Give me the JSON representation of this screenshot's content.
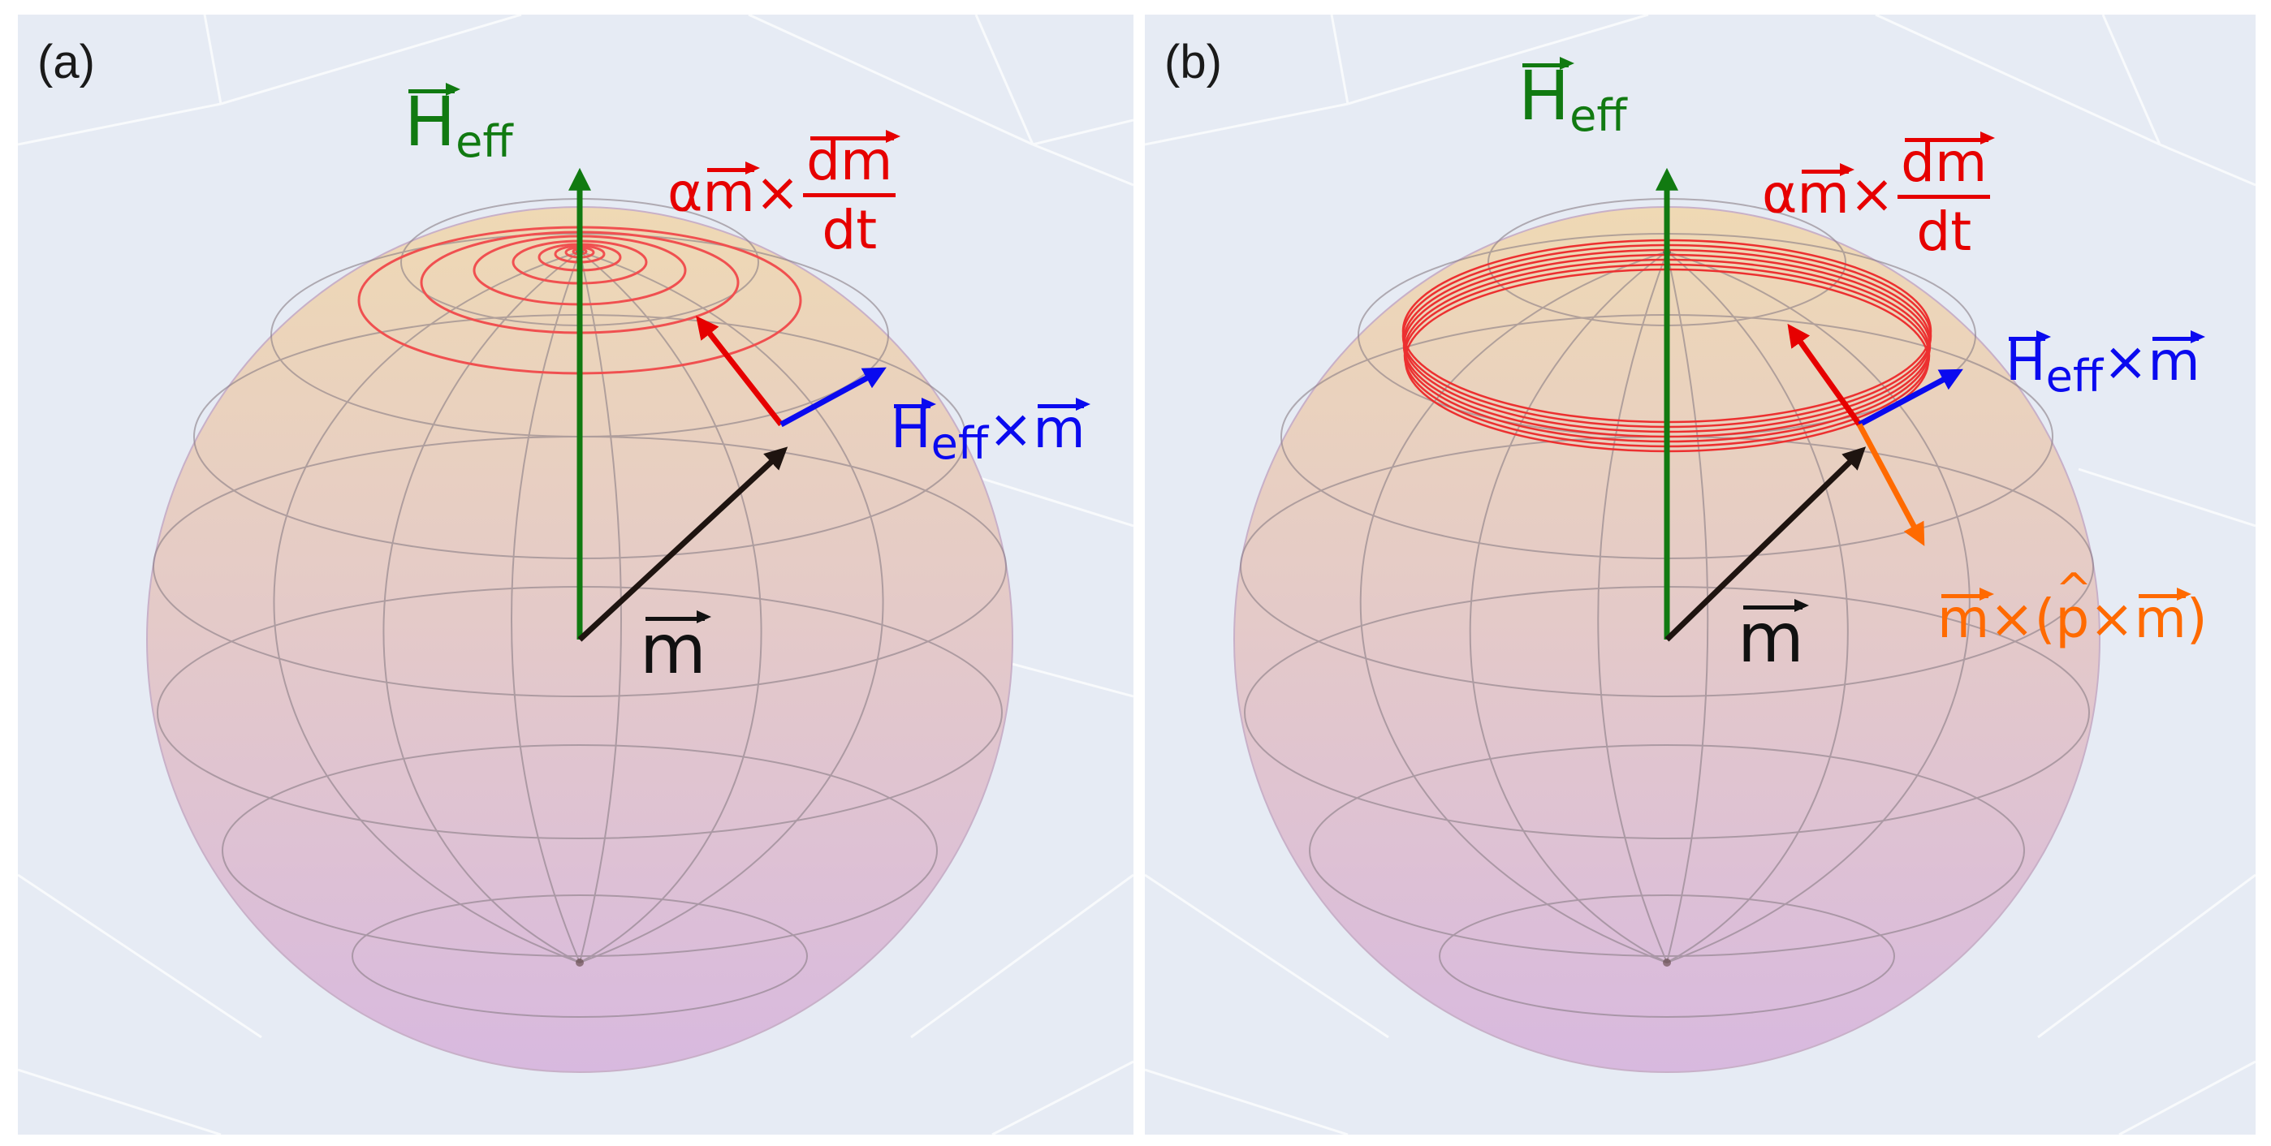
{
  "panels": [
    {
      "id": "a",
      "label": "(a)",
      "field_label": {
        "symbol": "H",
        "subscript": "eff"
      },
      "damping_label": {
        "prefix": "α",
        "vector": "m",
        "operator": "×",
        "numerator": "dm",
        "denominator": "dt"
      },
      "precession_label": {
        "symbol": "H",
        "subscript": "eff",
        "operator": "×",
        "vector": "m"
      },
      "magnetization_label": "m",
      "trajectory": "spiral converging toward the field axis"
    },
    {
      "id": "b",
      "label": "(b)",
      "field_label": {
        "symbol": "H",
        "subscript": "eff"
      },
      "damping_label": {
        "prefix": "α",
        "vector": "m",
        "operator": "×",
        "numerator": "dm",
        "denominator": "dt"
      },
      "precession_label": {
        "symbol": "H",
        "subscript": "eff",
        "operator": "×",
        "vector": "m"
      },
      "magnetization_label": "m",
      "torque_label": {
        "vector1": "m",
        "operator1": "×(",
        "hat": "p",
        "operator2": "×",
        "vector2": "m",
        "close": ")"
      },
      "trajectory": "steady precession orbit"
    }
  ],
  "colors": {
    "field": "#117a11",
    "damping": "#e60000",
    "precession": "#0a0aef",
    "spin_torque": "#ff6a00",
    "magnetization": "#1e1410",
    "background": "#e6ebf4",
    "sphere_top": "#efd9b4",
    "sphere_bottom": "#d8b9df"
  }
}
